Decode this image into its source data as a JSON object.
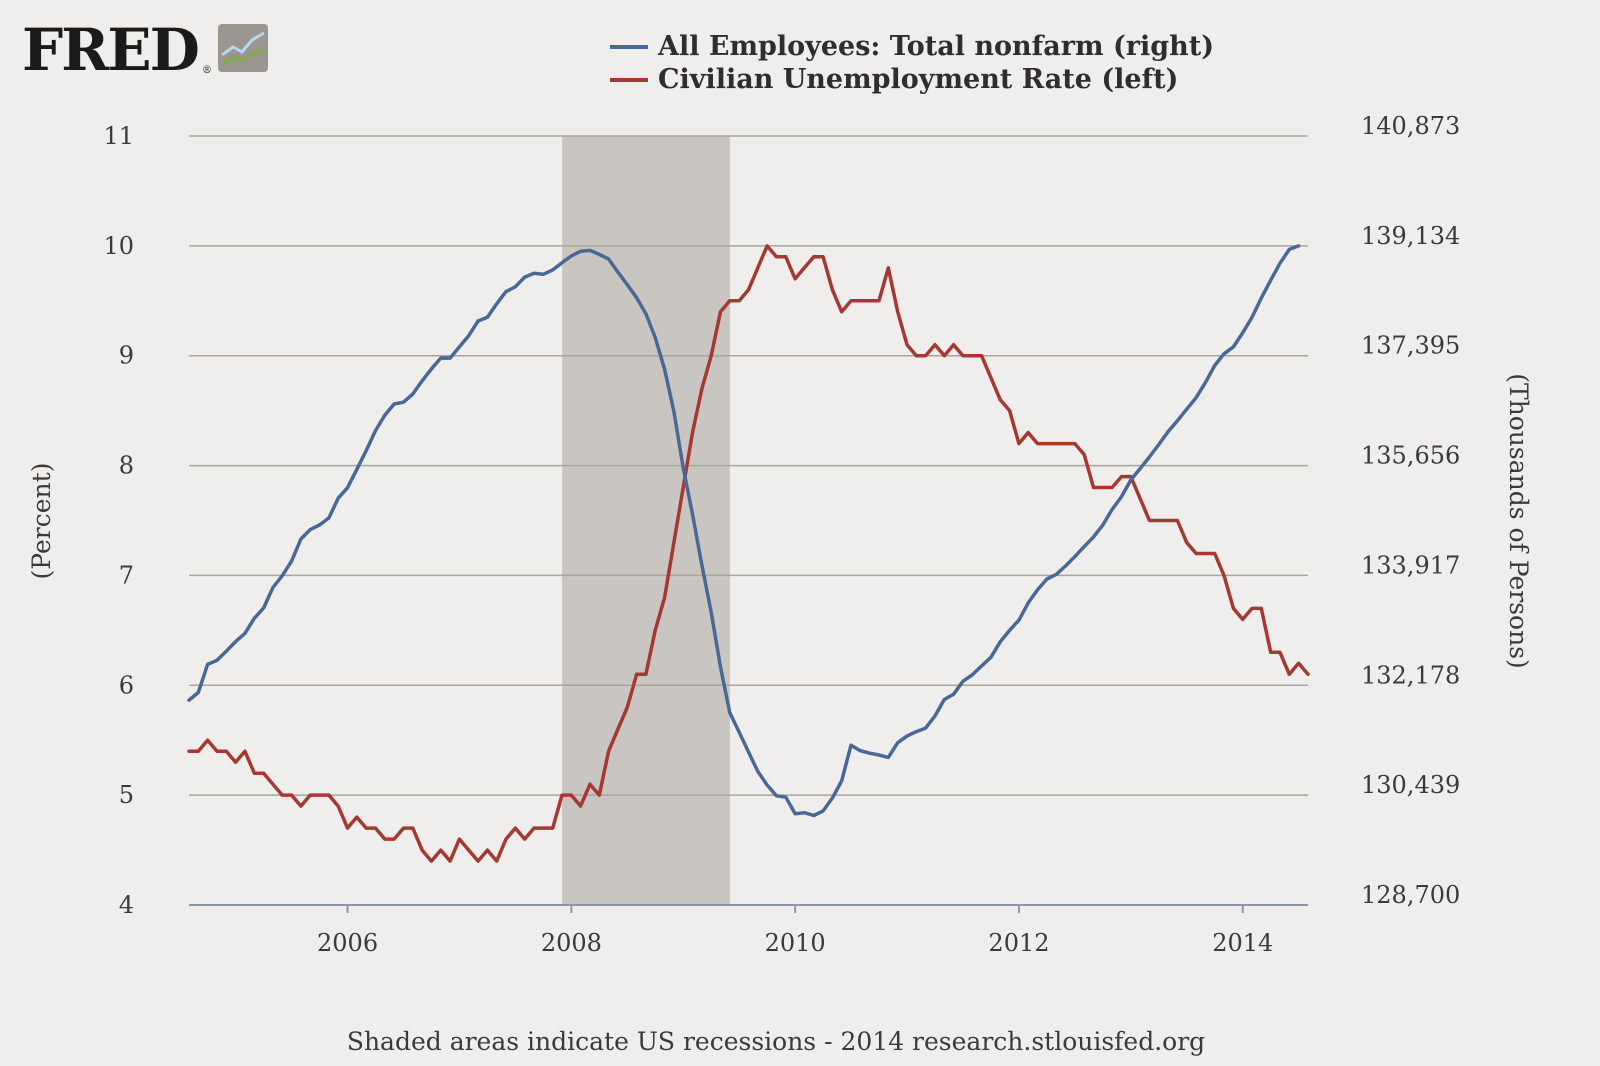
{
  "logo": {
    "text": "FRED",
    "mark": "®",
    "icon": "fred-chart-logo-icon"
  },
  "legend": {
    "items": [
      {
        "label": "All Employees: Total nonfarm (right)",
        "color": "#4a6897"
      },
      {
        "label": "Civilian Unemployment Rate (left)",
        "color": "#a63832"
      }
    ]
  },
  "footer": {
    "note": "Shaded areas indicate US recessions - 2014 research.stlouisfed.org"
  },
  "colors": {
    "background": "#efeeec",
    "grid": "#a8a49e",
    "recession": "#c9c6c2",
    "axis_text": "#3a3a3a"
  },
  "chart_data": {
    "type": "line",
    "title": "",
    "xlabel": "",
    "ylabel_left": "(Percent)",
    "ylabel_right": "(Thousands of Persons)",
    "x_ticks": [
      "2006",
      "2008",
      "2010",
      "2012",
      "2014"
    ],
    "x_tick_values": [
      2006.0,
      2008.0,
      2010.0,
      2012.0,
      2014.0
    ],
    "xlim": [
      2004.583,
      2014.583
    ],
    "y_left_ticks": [
      "4",
      "5",
      "6",
      "7",
      "8",
      "9",
      "10",
      "11"
    ],
    "y_left_lim": [
      4,
      11
    ],
    "y_right_ticks": [
      "128,700",
      "130,439",
      "132,178",
      "133,917",
      "135,656",
      "137,395",
      "139,134",
      "140,873"
    ],
    "y_right_lim": [
      128700,
      140873
    ],
    "grid": true,
    "legend_position": "top",
    "recessions": [
      {
        "start": 2007.917,
        "end": 2009.417
      }
    ],
    "series": [
      {
        "name": "Civilian Unemployment Rate (left)",
        "axis": "left",
        "color": "#a63832",
        "start": 2004.583,
        "step": 0.08333,
        "values": [
          5.4,
          5.4,
          5.5,
          5.4,
          5.4,
          5.3,
          5.4,
          5.2,
          5.2,
          5.1,
          5.0,
          5.0,
          4.9,
          5.0,
          5.0,
          5.0,
          4.9,
          4.7,
          4.8,
          4.7,
          4.7,
          4.6,
          4.6,
          4.7,
          4.7,
          4.5,
          4.4,
          4.5,
          4.4,
          4.6,
          4.5,
          4.4,
          4.5,
          4.4,
          4.6,
          4.7,
          4.6,
          4.7,
          4.7,
          4.7,
          5.0,
          5.0,
          4.9,
          5.1,
          5.0,
          5.4,
          5.6,
          5.8,
          6.1,
          6.1,
          6.5,
          6.8,
          7.3,
          7.8,
          8.3,
          8.7,
          9.0,
          9.4,
          9.5,
          9.5,
          9.6,
          9.8,
          10.0,
          9.9,
          9.9,
          9.7,
          9.8,
          9.9,
          9.9,
          9.6,
          9.4,
          9.5,
          9.5,
          9.5,
          9.5,
          9.8,
          9.4,
          9.1,
          9.0,
          9.0,
          9.1,
          9.0,
          9.1,
          9.0,
          9.0,
          9.0,
          8.8,
          8.6,
          8.5,
          8.2,
          8.3,
          8.2,
          8.2,
          8.2,
          8.2,
          8.2,
          8.1,
          7.8,
          7.8,
          7.8,
          7.9,
          7.9,
          7.7,
          7.5,
          7.5,
          7.5,
          7.5,
          7.3,
          7.2,
          7.2,
          7.2,
          7.0,
          6.7,
          6.6,
          6.7,
          6.7,
          6.3,
          6.3,
          6.1,
          6.2,
          6.1
        ]
      },
      {
        "name": "All Employees: Total nonfarm (right)",
        "axis": "right",
        "color": "#4a6897",
        "start": 2004.583,
        "step": 0.08333,
        "values": [
          131944,
          132064,
          132508,
          132574,
          132718,
          132869,
          133000,
          133239,
          133402,
          133724,
          133911,
          134144,
          134494,
          134643,
          134716,
          134828,
          135139,
          135305,
          135596,
          135893,
          136210,
          136453,
          136631,
          136659,
          136789,
          136996,
          137186,
          137358,
          137358,
          137536,
          137712,
          137944,
          138005,
          138216,
          138410,
          138487,
          138640,
          138700,
          138683,
          138754,
          138867,
          138973,
          139050,
          139062,
          138998,
          138926,
          138719,
          138519,
          138313,
          138060,
          137684,
          137180,
          136512,
          135619,
          134887,
          134079,
          133333,
          132466,
          131744,
          131436,
          131122,
          130815,
          130599,
          130429,
          130406,
          130146,
          130161,
          130116,
          130190,
          130393,
          130666,
          131230,
          131142,
          131103,
          131074,
          131036,
          131269,
          131373,
          131445,
          131501,
          131693,
          131953,
          132037,
          132241,
          132344,
          132483,
          132621,
          132866,
          133049,
          133208,
          133482,
          133688,
          133860,
          133933,
          134067,
          134214,
          134374,
          134526,
          134715,
          134960,
          135163,
          135428,
          135608,
          135791,
          135990,
          136193,
          136365,
          136548,
          136731,
          136969,
          137240,
          137425,
          137534,
          137758,
          138001,
          138309,
          138591,
          138860,
          139078,
          139134
        ]
      }
    ]
  }
}
